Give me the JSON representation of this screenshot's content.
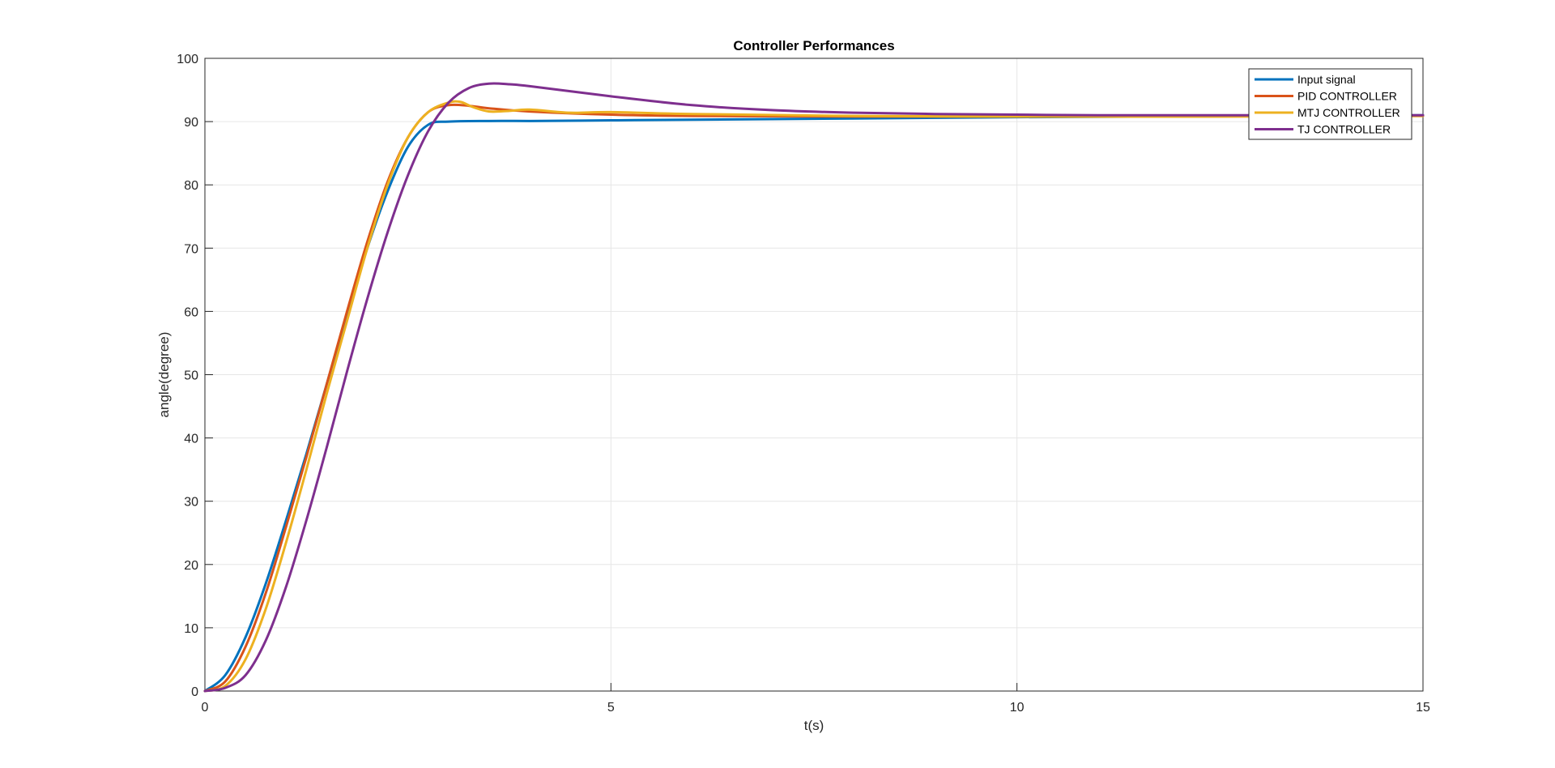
{
  "chart_data": {
    "type": "line",
    "title": "Controller Performances",
    "xlabel": "t(s)",
    "ylabel": "angle(degree)",
    "xlim": [
      0,
      15
    ],
    "ylim": [
      0,
      100
    ],
    "xticks": [
      0,
      5,
      10,
      15
    ],
    "yticks": [
      0,
      10,
      20,
      30,
      40,
      50,
      60,
      70,
      80,
      90,
      100
    ],
    "grid": true,
    "legend_position": "top-right",
    "series": [
      {
        "name": "Input signal",
        "color": "#0072BD",
        "x": [
          0,
          0.25,
          0.5,
          0.75,
          1.0,
          1.25,
          1.5,
          1.75,
          2.0,
          2.25,
          2.5,
          2.75,
          3.0,
          3.5,
          4,
          5,
          6,
          8,
          10,
          12,
          15
        ],
        "y": [
          0,
          2.5,
          8.5,
          17,
          27,
          37.5,
          48.5,
          59.5,
          70,
          79,
          86,
          89.5,
          90,
          90.1,
          90.1,
          90.2,
          90.3,
          90.5,
          90.7,
          90.8,
          91
        ]
      },
      {
        "name": "PID CONTROLLER",
        "color": "#D95319",
        "x": [
          0,
          0.25,
          0.5,
          0.75,
          1.0,
          1.25,
          1.5,
          1.75,
          2.0,
          2.25,
          2.5,
          2.75,
          3.0,
          3.25,
          3.5,
          4,
          5,
          6,
          8,
          10,
          12,
          15
        ],
        "y": [
          0,
          1.5,
          7,
          15.5,
          26,
          37,
          48.5,
          60,
          71,
          80.5,
          87.5,
          91.5,
          92.6,
          92.5,
          92.1,
          91.6,
          91.1,
          90.9,
          90.8,
          90.8,
          90.8,
          90.9
        ]
      },
      {
        "name": "MTJ CONTROLLER",
        "color": "#EDB120",
        "x": [
          0,
          0.25,
          0.5,
          0.75,
          1.0,
          1.25,
          1.5,
          1.75,
          2.0,
          2.25,
          2.5,
          2.75,
          3.0,
          3.15,
          3.3,
          3.5,
          3.75,
          4.0,
          4.5,
          5,
          6,
          8,
          10,
          12,
          15
        ],
        "y": [
          0,
          0.8,
          5,
          13,
          23.5,
          35,
          47,
          58.5,
          70,
          80,
          87.5,
          91.5,
          93,
          93.1,
          92.3,
          91.6,
          91.7,
          91.9,
          91.4,
          91.5,
          91.2,
          90.9,
          90.8,
          90.8,
          90.9
        ]
      },
      {
        "name": "TJ CONTROLLER",
        "color": "#7E2F8E",
        "x": [
          0,
          0.25,
          0.5,
          0.75,
          1.0,
          1.25,
          1.5,
          1.75,
          2.0,
          2.25,
          2.5,
          2.75,
          3.0,
          3.25,
          3.5,
          3.75,
          4,
          5,
          6,
          7,
          8,
          9,
          10,
          11,
          12,
          13,
          14,
          15
        ],
        "y": [
          0,
          0.5,
          2.5,
          8,
          16.5,
          27,
          38.5,
          50.5,
          62,
          72.5,
          81.5,
          88.5,
          93,
          95.3,
          96,
          95.9,
          95.6,
          94,
          92.6,
          91.8,
          91.4,
          91.2,
          91.1,
          91.0,
          91.0,
          91.0,
          91.0,
          91.0
        ]
      }
    ]
  }
}
